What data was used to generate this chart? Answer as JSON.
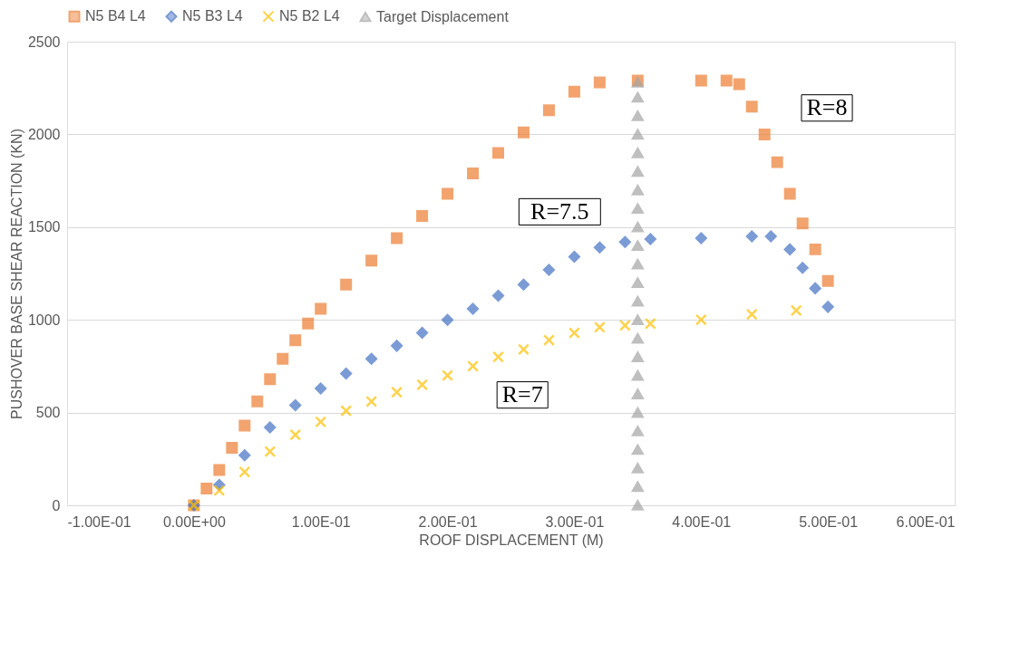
{
  "chart_data": {
    "type": "scatter",
    "xlabel": "ROOF DISPLACEMENT (M)",
    "ylabel": "PUSHOVER BASE SHEAR REACTION (KN)",
    "xlim": [
      -0.1,
      0.6
    ],
    "xticks": [
      {
        "value": -0.1,
        "label": "-1.00E-01"
      },
      {
        "value": 0,
        "label": "0.00E+00"
      },
      {
        "value": 0.1,
        "label": "1.00E-01"
      },
      {
        "value": 0.2,
        "label": "2.00E-01"
      },
      {
        "value": 0.3,
        "label": "3.00E-01"
      },
      {
        "value": 0.4,
        "label": "4.00E-01"
      },
      {
        "value": 0.5,
        "label": "5.00E-01"
      },
      {
        "value": 0.6,
        "label": "6.00E-01"
      }
    ],
    "ylim": [
      0,
      2500
    ],
    "yticks": [
      0,
      500,
      1000,
      1500,
      2000,
      2500
    ],
    "grid": "y",
    "legend": "top",
    "series": [
      {
        "name": "N5 B4 L4",
        "color": "#ed7d31",
        "marker": "square",
        "x": [
          0,
          0.01,
          0.02,
          0.03,
          0.04,
          0.05,
          0.06,
          0.07,
          0.08,
          0.09,
          0.1,
          0.12,
          0.14,
          0.16,
          0.18,
          0.2,
          0.22,
          0.24,
          0.26,
          0.28,
          0.3,
          0.32,
          0.35,
          0.4,
          0.42,
          0.43,
          0.44,
          0.45,
          0.46,
          0.47,
          0.48,
          0.49,
          0.5
        ],
        "values": [
          0,
          90,
          190,
          310,
          430,
          560,
          680,
          790,
          890,
          980,
          1060,
          1190,
          1320,
          1440,
          1560,
          1680,
          1790,
          1900,
          2010,
          2130,
          2230,
          2280,
          2290,
          2290,
          2290,
          2270,
          2150,
          2000,
          1850,
          1680,
          1520,
          1380,
          1210
        ]
      },
      {
        "name": "N5 B3 L4",
        "color": "#4472c4",
        "marker": "diamond",
        "x": [
          0,
          0.02,
          0.04,
          0.06,
          0.08,
          0.1,
          0.12,
          0.14,
          0.16,
          0.18,
          0.2,
          0.22,
          0.24,
          0.26,
          0.28,
          0.3,
          0.32,
          0.34,
          0.36,
          0.4,
          0.44,
          0.455,
          0.47,
          0.48,
          0.49,
          0.5
        ],
        "values": [
          0,
          110,
          270,
          420,
          540,
          630,
          710,
          790,
          860,
          930,
          1000,
          1060,
          1130,
          1190,
          1270,
          1340,
          1390,
          1420,
          1435,
          1440,
          1450,
          1450,
          1380,
          1280,
          1170,
          1070
        ]
      },
      {
        "name": "N5 B2 L4",
        "color": "#ffc000",
        "marker": "cross",
        "x": [
          0,
          0.02,
          0.04,
          0.06,
          0.08,
          0.1,
          0.12,
          0.14,
          0.16,
          0.18,
          0.2,
          0.22,
          0.24,
          0.26,
          0.28,
          0.3,
          0.32,
          0.34,
          0.36,
          0.4,
          0.44,
          0.475
        ],
        "values": [
          0,
          80,
          180,
          290,
          380,
          450,
          510,
          560,
          610,
          650,
          700,
          750,
          800,
          840,
          890,
          930,
          960,
          970,
          980,
          1000,
          1030,
          1050
        ]
      },
      {
        "name": "Target Displacement",
        "color": "#a5a5a5",
        "marker": "triangle",
        "x": [
          0.35,
          0.35,
          0.35,
          0.35,
          0.35,
          0.35,
          0.35,
          0.35,
          0.35,
          0.35,
          0.35,
          0.35,
          0.35,
          0.35,
          0.35,
          0.35,
          0.35,
          0.35,
          0.35,
          0.35,
          0.35,
          0.35,
          0.35,
          0.35
        ],
        "values": [
          0,
          100,
          200,
          300,
          400,
          500,
          600,
          700,
          800,
          900,
          1000,
          1100,
          1200,
          1300,
          1400,
          1500,
          1600,
          1700,
          1800,
          1900,
          2000,
          2100,
          2200,
          2280
        ]
      }
    ],
    "annotations": [
      "R=8",
      "R=7.5",
      "R=7"
    ]
  }
}
